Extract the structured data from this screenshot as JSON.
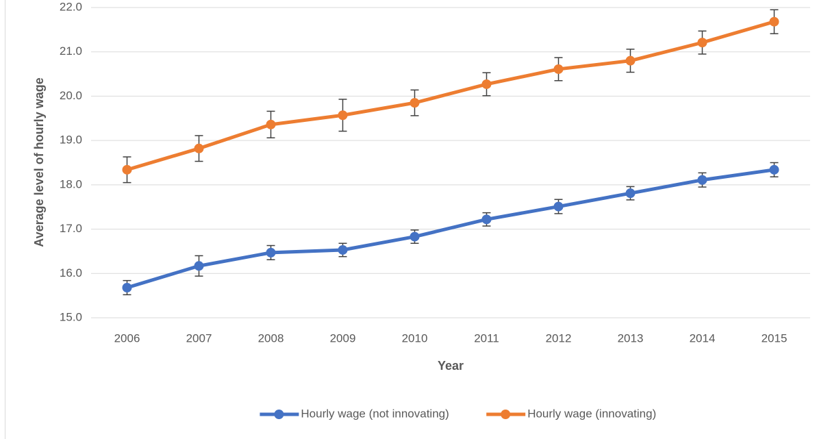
{
  "chart_data": {
    "type": "line",
    "categories": [
      "2006",
      "2007",
      "2008",
      "2009",
      "2010",
      "2011",
      "2012",
      "2013",
      "2014",
      "2015"
    ],
    "series": [
      {
        "name": "Hourly wage (not innovating)",
        "color": "#4472c4",
        "values": [
          15.68,
          16.17,
          16.47,
          16.53,
          16.83,
          17.22,
          17.51,
          17.81,
          18.11,
          18.34
        ],
        "errors": [
          0.16,
          0.23,
          0.16,
          0.15,
          0.15,
          0.15,
          0.16,
          0.15,
          0.16,
          0.16
        ]
      },
      {
        "name": "Hourly wage (innovating)",
        "color": "#ed7d31",
        "values": [
          18.34,
          18.82,
          19.36,
          19.57,
          19.85,
          20.27,
          20.61,
          20.8,
          21.21,
          21.68
        ],
        "errors": [
          0.29,
          0.29,
          0.3,
          0.36,
          0.29,
          0.26,
          0.26,
          0.26,
          0.26,
          0.27
        ]
      }
    ],
    "ylim": [
      15,
      22
    ],
    "yticks": [
      {
        "value": 15,
        "label": "15.0"
      },
      {
        "value": 16,
        "label": "16.0"
      },
      {
        "value": 17,
        "label": "17.0"
      },
      {
        "value": 18,
        "label": "18.0"
      },
      {
        "value": 19,
        "label": "19.0"
      },
      {
        "value": 20,
        "label": "20.0"
      },
      {
        "value": 21,
        "label": "21.0"
      },
      {
        "value": 22,
        "label": "22.0"
      }
    ],
    "xlabel": "Year",
    "ylabel": "Average level of hourly wage",
    "grid": true,
    "legend": "bottom"
  }
}
